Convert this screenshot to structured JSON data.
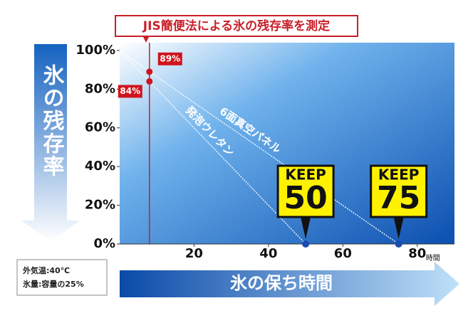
{
  "chart_data": {
    "type": "line",
    "title": "JIS簡便法による氷の残存率を測定",
    "y_label": "氷の残存率",
    "x_label": "氷の保ち時間",
    "x_unit": "時間",
    "notes": [
      "外気温:40℃",
      "氷量:容量の25%"
    ],
    "xlim": [
      0,
      90
    ],
    "xticks": [
      20,
      40,
      60,
      80
    ],
    "ylim": [
      0,
      104
    ],
    "yticks": [
      {
        "value": 0,
        "label": "0%"
      },
      {
        "value": 20,
        "label": "20%"
      },
      {
        "value": 40,
        "label": "40%"
      },
      {
        "value": 60,
        "label": "60%"
      },
      {
        "value": 80,
        "label": "80%"
      },
      {
        "value": 100,
        "label": "100%"
      }
    ],
    "reference_x": 8,
    "reference_color": "#c8202a",
    "series": [
      {
        "name": "6面真空パネル",
        "color": "#ffffff",
        "x": [
          0,
          8,
          75
        ],
        "values": [
          100,
          89,
          0
        ]
      },
      {
        "name": "発泡ウレタン",
        "color": "#ffffff",
        "x": [
          0,
          8,
          50
        ],
        "values": [
          100,
          84,
          0
        ]
      }
    ],
    "points": [
      {
        "x": 8,
        "y": 89,
        "label": "89%",
        "color": "#d0141e"
      },
      {
        "x": 8,
        "y": 84,
        "label": "84%",
        "color": "#d0141e"
      }
    ],
    "callouts": [
      {
        "x": 50,
        "y": 0,
        "label": "KEEP",
        "number": "50"
      },
      {
        "x": 75,
        "y": 0,
        "label": "KEEP",
        "number": "75"
      }
    ]
  }
}
